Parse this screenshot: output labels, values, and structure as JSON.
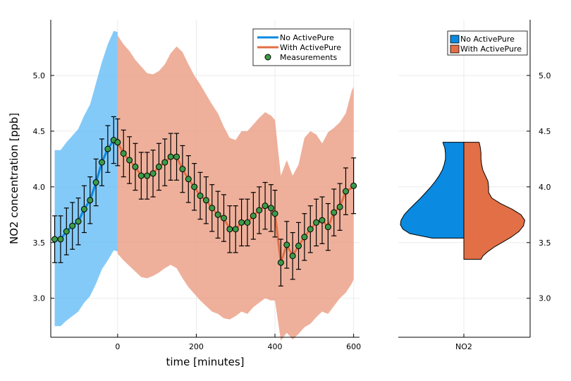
{
  "chart_data": [
    {
      "type": "line",
      "title": "",
      "xlabel": "time [minutes]",
      "ylabel": "NO2 concentration [ppb]",
      "xlim": [
        -170,
        615
      ],
      "ylim": [
        2.65,
        5.5
      ],
      "xticks": [
        0,
        200,
        400,
        600
      ],
      "yticks": [
        3.0,
        3.5,
        4.0,
        4.5,
        5.0
      ],
      "xtick_labels": [
        "0",
        "200",
        "400",
        "600"
      ],
      "ytick_labels": [
        "3.0",
        "3.5",
        "4.0",
        "4.5",
        "5.0"
      ],
      "grid": true,
      "legend_position": "top-right",
      "legend": [
        {
          "label": "No ActivePure",
          "kind": "line",
          "color": "#0a8ae0"
        },
        {
          "label": "With ActivePure",
          "kind": "line",
          "color": "#e26f46"
        },
        {
          "label": "Measurements",
          "kind": "marker",
          "color": "#3c9b48"
        }
      ],
      "bands": [
        {
          "series": "No ActivePure",
          "color": "#5bb8f5",
          "x": [
            -160,
            -145,
            -130,
            -115,
            -100,
            -85,
            -70,
            -55,
            -40,
            -25,
            -10,
            0
          ],
          "upper": [
            4.33,
            4.33,
            4.4,
            4.46,
            4.52,
            4.64,
            4.74,
            4.93,
            5.12,
            5.28,
            5.4,
            5.39
          ],
          "lower": [
            2.75,
            2.75,
            2.8,
            2.84,
            2.88,
            2.96,
            3.02,
            3.13,
            3.26,
            3.34,
            3.43,
            3.42
          ]
        },
        {
          "series": "With ActivePure",
          "color": "#e8957a",
          "x": [
            0,
            15,
            30,
            45,
            60,
            75,
            90,
            105,
            120,
            135,
            150,
            165,
            180,
            195,
            210,
            225,
            240,
            255,
            270,
            285,
            300,
            315,
            330,
            345,
            360,
            375,
            390,
            400,
            415,
            430,
            445,
            460,
            475,
            490,
            505,
            520,
            535,
            550,
            565,
            580,
            595,
            600
          ],
          "upper": [
            5.36,
            5.28,
            5.22,
            5.14,
            5.08,
            5.02,
            5.01,
            5.04,
            5.1,
            5.2,
            5.26,
            5.21,
            5.1,
            5.0,
            4.92,
            4.83,
            4.74,
            4.66,
            4.54,
            4.44,
            4.42,
            4.5,
            4.5,
            4.56,
            4.62,
            4.67,
            4.64,
            4.6,
            4.1,
            4.24,
            4.1,
            4.2,
            4.44,
            4.5,
            4.47,
            4.39,
            4.49,
            4.53,
            4.58,
            4.66,
            4.86,
            4.9
          ],
          "lower": [
            3.4,
            3.34,
            3.29,
            3.24,
            3.19,
            3.18,
            3.2,
            3.23,
            3.27,
            3.3,
            3.27,
            3.18,
            3.1,
            3.04,
            2.98,
            2.93,
            2.88,
            2.86,
            2.82,
            2.81,
            2.84,
            2.88,
            2.86,
            2.92,
            2.96,
            3.0,
            2.98,
            2.98,
            2.62,
            2.69,
            2.63,
            2.68,
            2.74,
            2.77,
            2.83,
            2.88,
            2.86,
            2.93,
            3.0,
            3.05,
            3.13,
            3.17
          ]
        }
      ],
      "series": [
        {
          "name": "No ActivePure",
          "color": "#0a8ae0",
          "x": [
            -160,
            -145,
            -130,
            -115,
            -100,
            -85,
            -70,
            -55,
            -40,
            -25,
            -10,
            0
          ],
          "y": [
            3.53,
            3.53,
            3.6,
            3.65,
            3.69,
            3.8,
            3.88,
            4.04,
            4.22,
            4.34,
            4.42,
            4.4
          ]
        },
        {
          "name": "With ActivePure",
          "color": "#e26f46",
          "x": [
            0,
            15,
            30,
            45,
            60,
            75,
            90,
            105,
            120,
            135,
            150,
            165,
            180,
            195,
            210,
            225,
            240,
            255,
            270,
            285,
            300,
            315,
            330,
            345,
            360,
            375,
            390,
            400,
            415,
            430,
            445,
            460,
            475,
            490,
            505,
            520,
            535,
            550,
            565,
            580,
            595,
            600
          ],
          "y": [
            4.4,
            4.3,
            4.24,
            4.18,
            4.1,
            4.1,
            4.12,
            4.18,
            4.22,
            4.27,
            4.27,
            4.16,
            4.07,
            4.0,
            3.92,
            3.88,
            3.81,
            3.75,
            3.72,
            3.62,
            3.62,
            3.68,
            3.68,
            3.74,
            3.79,
            3.83,
            3.81,
            3.76,
            3.32,
            3.48,
            3.38,
            3.47,
            3.55,
            3.62,
            3.68,
            3.7,
            3.64,
            3.77,
            3.82,
            3.96,
            3.99,
            4.01
          ]
        },
        {
          "name": "Measurements",
          "color": "#3c9b48",
          "marker": "circle",
          "x": [
            -160,
            -145,
            -130,
            -115,
            -100,
            -85,
            -70,
            -55,
            -40,
            -25,
            -10,
            0,
            15,
            30,
            45,
            60,
            75,
            90,
            105,
            120,
            135,
            150,
            165,
            180,
            195,
            210,
            225,
            240,
            255,
            270,
            285,
            300,
            315,
            330,
            345,
            360,
            375,
            390,
            400,
            415,
            430,
            445,
            460,
            475,
            490,
            505,
            520,
            535,
            550,
            565,
            580,
            600
          ],
          "y": [
            3.53,
            3.53,
            3.6,
            3.65,
            3.69,
            3.8,
            3.88,
            4.04,
            4.22,
            4.34,
            4.42,
            4.4,
            4.3,
            4.24,
            4.18,
            4.1,
            4.1,
            4.12,
            4.18,
            4.22,
            4.27,
            4.27,
            4.16,
            4.07,
            4.0,
            3.92,
            3.88,
            3.81,
            3.75,
            3.72,
            3.62,
            3.62,
            3.68,
            3.68,
            3.74,
            3.79,
            3.83,
            3.81,
            3.76,
            3.32,
            3.48,
            3.38,
            3.47,
            3.55,
            3.62,
            3.68,
            3.7,
            3.64,
            3.77,
            3.82,
            3.96,
            4.01
          ],
          "err": [
            0.21,
            0.21,
            0.21,
            0.21,
            0.21,
            0.21,
            0.21,
            0.21,
            0.21,
            0.21,
            0.21,
            0.21,
            0.21,
            0.21,
            0.21,
            0.21,
            0.21,
            0.21,
            0.21,
            0.21,
            0.21,
            0.21,
            0.21,
            0.21,
            0.21,
            0.21,
            0.21,
            0.21,
            0.21,
            0.21,
            0.21,
            0.21,
            0.21,
            0.21,
            0.21,
            0.21,
            0.21,
            0.21,
            0.21,
            0.21,
            0.21,
            0.21,
            0.21,
            0.21,
            0.21,
            0.21,
            0.21,
            0.21,
            0.21,
            0.21,
            0.21,
            0.25
          ]
        }
      ]
    },
    {
      "type": "violin",
      "title": "",
      "xlabel": "",
      "ylabel": "",
      "categories": [
        "NO2"
      ],
      "ylim": [
        2.65,
        5.5
      ],
      "yticks": [
        3.0,
        3.5,
        4.0,
        4.5,
        5.0
      ],
      "ytick_labels": [
        "3.0",
        "3.5",
        "4.0",
        "4.5",
        "5.0"
      ],
      "y_axis_side": "right",
      "grid": true,
      "legend_position": "top-right",
      "legend": [
        {
          "label": "No ActivePure",
          "kind": "patch",
          "color": "#0a8ae0"
        },
        {
          "label": "With ActivePure",
          "kind": "patch",
          "color": "#e26f46"
        }
      ],
      "halves": [
        {
          "series": "No ActivePure",
          "side": "left",
          "color": "#0a8ae0",
          "y": [
            3.54,
            3.58,
            3.62,
            3.66,
            3.7,
            3.75,
            3.8,
            3.85,
            3.9,
            3.95,
            4.0,
            4.05,
            4.1,
            4.15,
            4.2,
            4.25,
            4.3,
            4.35,
            4.38,
            4.4
          ],
          "density": [
            0.5,
            0.85,
            0.96,
            1.0,
            0.99,
            0.94,
            0.86,
            0.77,
            0.68,
            0.6,
            0.52,
            0.45,
            0.39,
            0.34,
            0.31,
            0.29,
            0.29,
            0.3,
            0.32,
            0.33
          ]
        },
        {
          "series": "With ActivePure",
          "side": "right",
          "color": "#e26f46",
          "y": [
            3.35,
            3.38,
            3.42,
            3.46,
            3.5,
            3.55,
            3.6,
            3.65,
            3.7,
            3.75,
            3.8,
            3.85,
            3.9,
            3.95,
            4.0,
            4.05,
            4.1,
            4.15,
            4.2,
            4.25,
            4.3,
            4.35,
            4.38,
            4.4
          ],
          "density": [
            0.27,
            0.3,
            0.38,
            0.48,
            0.6,
            0.75,
            0.87,
            0.94,
            0.96,
            0.9,
            0.76,
            0.58,
            0.44,
            0.39,
            0.39,
            0.38,
            0.34,
            0.3,
            0.28,
            0.27,
            0.27,
            0.26,
            0.25,
            0.24
          ]
        }
      ]
    }
  ]
}
